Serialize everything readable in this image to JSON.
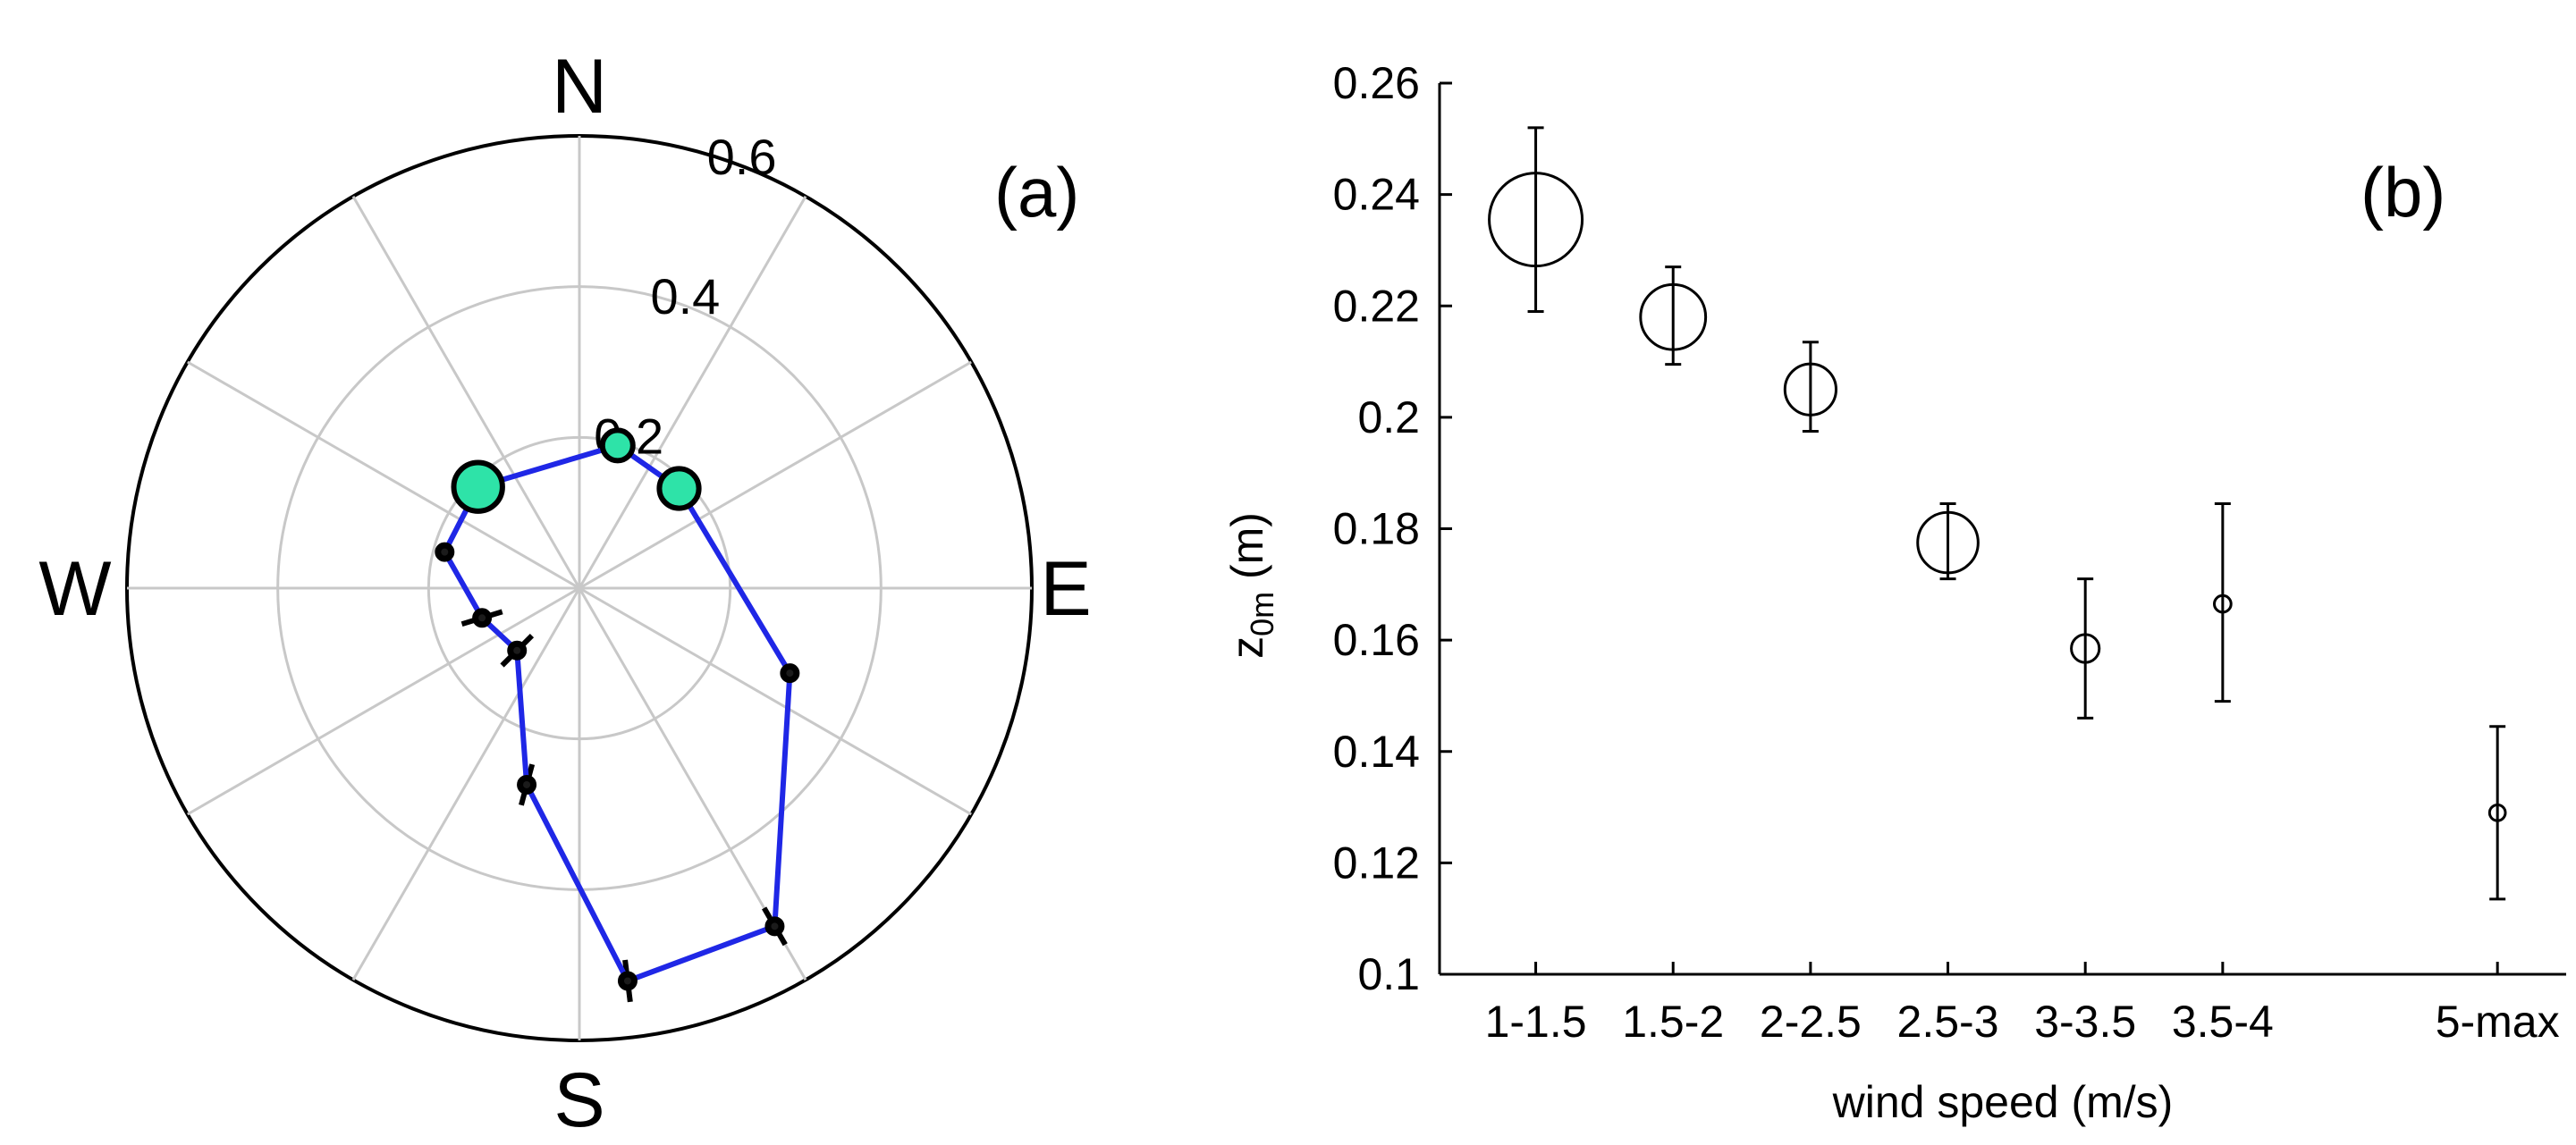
{
  "chart_data": [
    {
      "type": "polar-line",
      "panel_label": "(a)",
      "directions": [
        "N",
        "E",
        "S",
        "W"
      ],
      "radial_axis": {
        "ticks": [
          0.2,
          0.4,
          0.6
        ],
        "tick_labels": [
          "0.2",
          "0.4",
          "0.6"
        ],
        "max": 0.6
      },
      "sector_spacing_deg": 30,
      "line_color": "#1f27e6",
      "marker_fill": "#2ee3a8",
      "points": [
        {
          "dir_deg": 15,
          "r": 0.196,
          "marker": "circle-filled",
          "marker_size": 1.0
        },
        {
          "dir_deg": 45,
          "r": 0.187,
          "marker": "circle-filled",
          "marker_size": 1.3
        },
        {
          "dir_deg": 112,
          "r": 0.301,
          "marker": "dot",
          "marker_size": 1.0
        },
        {
          "dir_deg": 150,
          "r": 0.518,
          "marker": "dot-errorbar",
          "marker_size": 1.0
        },
        {
          "dir_deg": 173,
          "r": 0.525,
          "marker": "dot-errorbar",
          "marker_size": 1.0
        },
        {
          "dir_deg": 195,
          "r": 0.27,
          "marker": "dot-errorbar",
          "marker_size": 1.0
        },
        {
          "dir_deg": 225,
          "r": 0.117,
          "marker": "dot-errorbar",
          "marker_size": 1.0
        },
        {
          "dir_deg": 253,
          "r": 0.135,
          "marker": "dot-errorbar",
          "marker_size": 1.0
        },
        {
          "dir_deg": 285,
          "r": 0.185,
          "marker": "dot",
          "marker_size": 1.0
        },
        {
          "dir_deg": 315,
          "r": 0.19,
          "marker": "circle-filled",
          "marker_size": 1.6
        }
      ]
    },
    {
      "type": "scatter",
      "panel_label": "(b)",
      "xlabel": "wind speed (m/s)",
      "ylabel_main": "z",
      "ylabel_sub": "0m",
      "ylabel_unit": " (m)",
      "categories": [
        "1-1.5",
        "1.5-2",
        "2-2.5",
        "2.5-3",
        "3-3.5",
        "3.5-4",
        "5-max"
      ],
      "category_positions": [
        1,
        2,
        3,
        4,
        5,
        6,
        8
      ],
      "xlim": [
        0.3,
        8.5
      ],
      "ylim": [
        0.1,
        0.26
      ],
      "yticks": [
        0.1,
        0.12,
        0.14,
        0.16,
        0.18,
        0.2,
        0.22,
        0.24,
        0.26
      ],
      "ytick_labels": [
        "0.1",
        "0.12",
        "0.14",
        "0.16",
        "0.18",
        "0.2",
        "0.22",
        "0.24",
        "0.26"
      ],
      "series": [
        {
          "values": [
            0.2355,
            0.218,
            0.205,
            0.1775,
            0.1585,
            0.1665,
            0.129
          ],
          "err_low": [
            0.219,
            0.2095,
            0.1975,
            0.171,
            0.146,
            0.149,
            0.1135
          ],
          "err_high": [
            0.252,
            0.227,
            0.2135,
            0.1845,
            0.171,
            0.1845,
            0.1445
          ],
          "marker_size": [
            1.0,
            0.7,
            0.55,
            0.65,
            0.3,
            0.18,
            0.17
          ]
        }
      ]
    }
  ]
}
